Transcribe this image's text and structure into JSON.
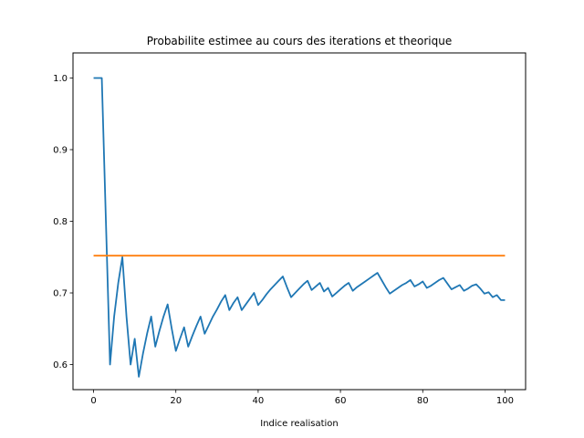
{
  "chart_data": {
    "type": "line",
    "title": "Probabilite estimee au cours des iterations et theorique",
    "xlabel": "Indice realisation",
    "ylabel": "",
    "xlim": [
      -5,
      105
    ],
    "ylim": [
      0.565,
      1.035
    ],
    "xticks": [
      0,
      20,
      40,
      60,
      80,
      100
    ],
    "yticks": [
      0.6,
      0.7,
      0.8,
      0.9,
      1.0
    ],
    "xtick_labels": [
      "0",
      "20",
      "40",
      "60",
      "80",
      "100"
    ],
    "ytick_labels": [
      "0.6",
      "0.7",
      "0.8",
      "0.9",
      "1.0"
    ],
    "grid": false,
    "series": [
      {
        "color": "#1f77b4",
        "x": [
          0,
          1,
          2,
          3,
          4,
          5,
          6,
          7,
          8,
          9,
          10,
          11,
          12,
          13,
          14,
          15,
          16,
          17,
          18,
          19,
          20,
          21,
          22,
          23,
          24,
          25,
          26,
          27,
          28,
          29,
          30,
          31,
          32,
          33,
          34,
          35,
          36,
          37,
          38,
          39,
          40,
          41,
          42,
          43,
          44,
          45,
          46,
          47,
          48,
          49,
          50,
          51,
          52,
          53,
          54,
          55,
          56,
          57,
          58,
          59,
          60,
          61,
          62,
          63,
          64,
          65,
          66,
          67,
          68,
          69,
          70,
          71,
          72,
          73,
          74,
          75,
          76,
          77,
          78,
          79,
          80,
          81,
          82,
          83,
          84,
          85,
          86,
          87,
          88,
          89,
          90,
          91,
          92,
          93,
          94,
          95,
          96,
          97,
          98,
          99,
          100
        ],
        "y": [
          1.0,
          1.0,
          1.0,
          0.8,
          0.6,
          0.667,
          0.714,
          0.75,
          0.667,
          0.6,
          0.636,
          0.583,
          0.615,
          0.643,
          0.667,
          0.625,
          0.647,
          0.667,
          0.684,
          0.65,
          0.619,
          0.636,
          0.652,
          0.625,
          0.64,
          0.654,
          0.667,
          0.643,
          0.655,
          0.667,
          0.677,
          0.688,
          0.697,
          0.676,
          0.686,
          0.694,
          0.676,
          0.684,
          0.692,
          0.7,
          0.683,
          0.69,
          0.698,
          0.705,
          0.711,
          0.717,
          0.723,
          0.708,
          0.694,
          0.7,
          0.706,
          0.712,
          0.717,
          0.704,
          0.709,
          0.714,
          0.702,
          0.707,
          0.695,
          0.7,
          0.705,
          0.71,
          0.714,
          0.703,
          0.708,
          0.712,
          0.716,
          0.72,
          0.724,
          0.728,
          0.718,
          0.708,
          0.699,
          0.703,
          0.707,
          0.711,
          0.714,
          0.718,
          0.709,
          0.712,
          0.716,
          0.707,
          0.71,
          0.714,
          0.718,
          0.721,
          0.713,
          0.705,
          0.708,
          0.711,
          0.703,
          0.706,
          0.71,
          0.712,
          0.706,
          0.699,
          0.701,
          0.694,
          0.697,
          0.69,
          0.69
        ]
      },
      {
        "color": "#ff7f0e",
        "x": [
          0,
          100
        ],
        "y": [
          0.752,
          0.752
        ]
      }
    ]
  }
}
